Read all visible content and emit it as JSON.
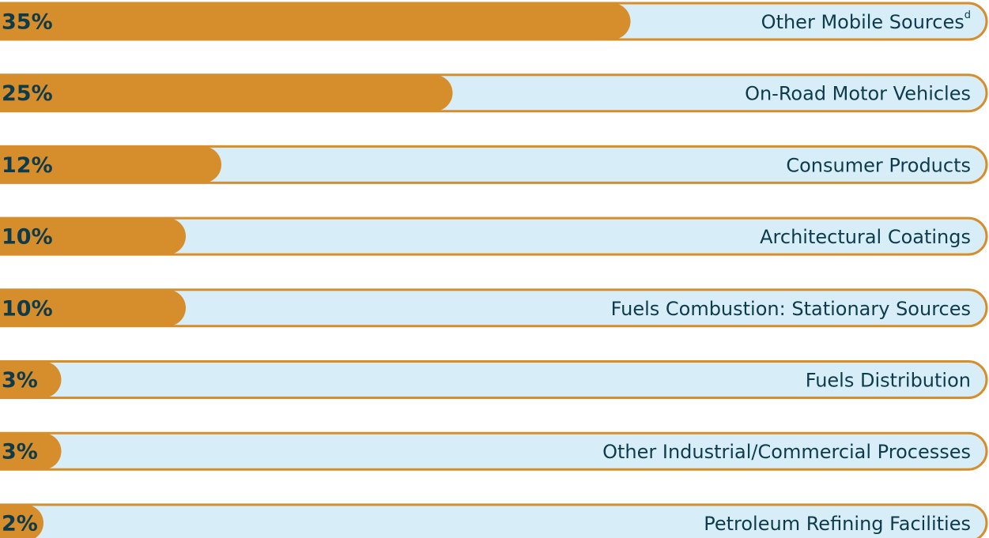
{
  "chart_data": {
    "type": "bar",
    "orientation": "horizontal",
    "categories": [
      "Other Mobile Sources",
      "On-Road Motor Vehicles",
      "Consumer Products",
      "Architectural Coatings",
      "Fuels Combustion: Stationary Sources",
      "Fuels Distribution",
      "Other Industrial/Commercial Processes",
      "Petroleum Refining Facilities"
    ],
    "footnote_marks": [
      "d",
      null,
      null,
      null,
      null,
      null,
      null,
      null
    ],
    "values": [
      35,
      25,
      12,
      10,
      10,
      3,
      3,
      2
    ],
    "value_labels": [
      "35%",
      "25%",
      "12%",
      "10%",
      "10%",
      "3%",
      "3%",
      "2%"
    ],
    "color": "#d68d2b",
    "track_color": "#d7eef8"
  }
}
